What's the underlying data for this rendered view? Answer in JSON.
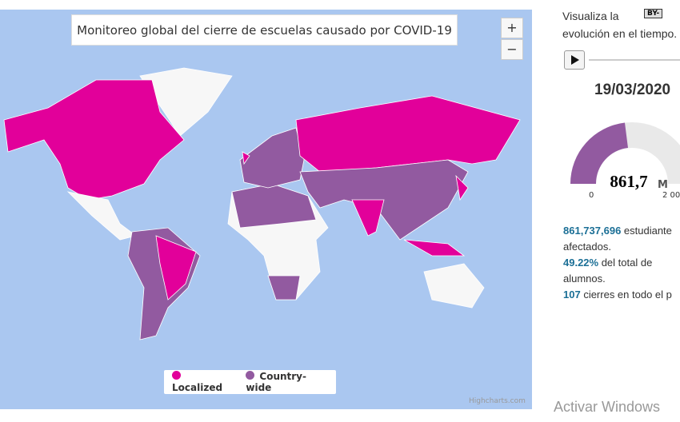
{
  "map": {
    "title": "Monitoreo global del cierre de escuelas causado por COVID-19",
    "zoom_in": "+",
    "zoom_out": "−",
    "credit": "Highcharts.com",
    "legend": [
      {
        "name": "Localized",
        "color": "#e2009a"
      },
      {
        "name": "Country-wide",
        "color": "#925aa0"
      }
    ]
  },
  "side": {
    "intro_line1": "Visualiza la",
    "intro_line2": "evolución en el tiempo.",
    "license": "BY-",
    "date": "19/03/2020",
    "gauge": {
      "value_label": "861,7",
      "unit": "M",
      "min_label": "0",
      "max_label": "2 00"
    },
    "stats": [
      {
        "highlight": "861,737,696",
        "text": " estudiante"
      },
      {
        "highlight": "",
        "text": "afectados."
      },
      {
        "highlight": "49.22%",
        "text": " del total de"
      },
      {
        "highlight": "",
        "text": "alumnos."
      },
      {
        "highlight": "107",
        "text": " cierres en todo el p"
      }
    ]
  },
  "watermark": "Activar Windows"
}
